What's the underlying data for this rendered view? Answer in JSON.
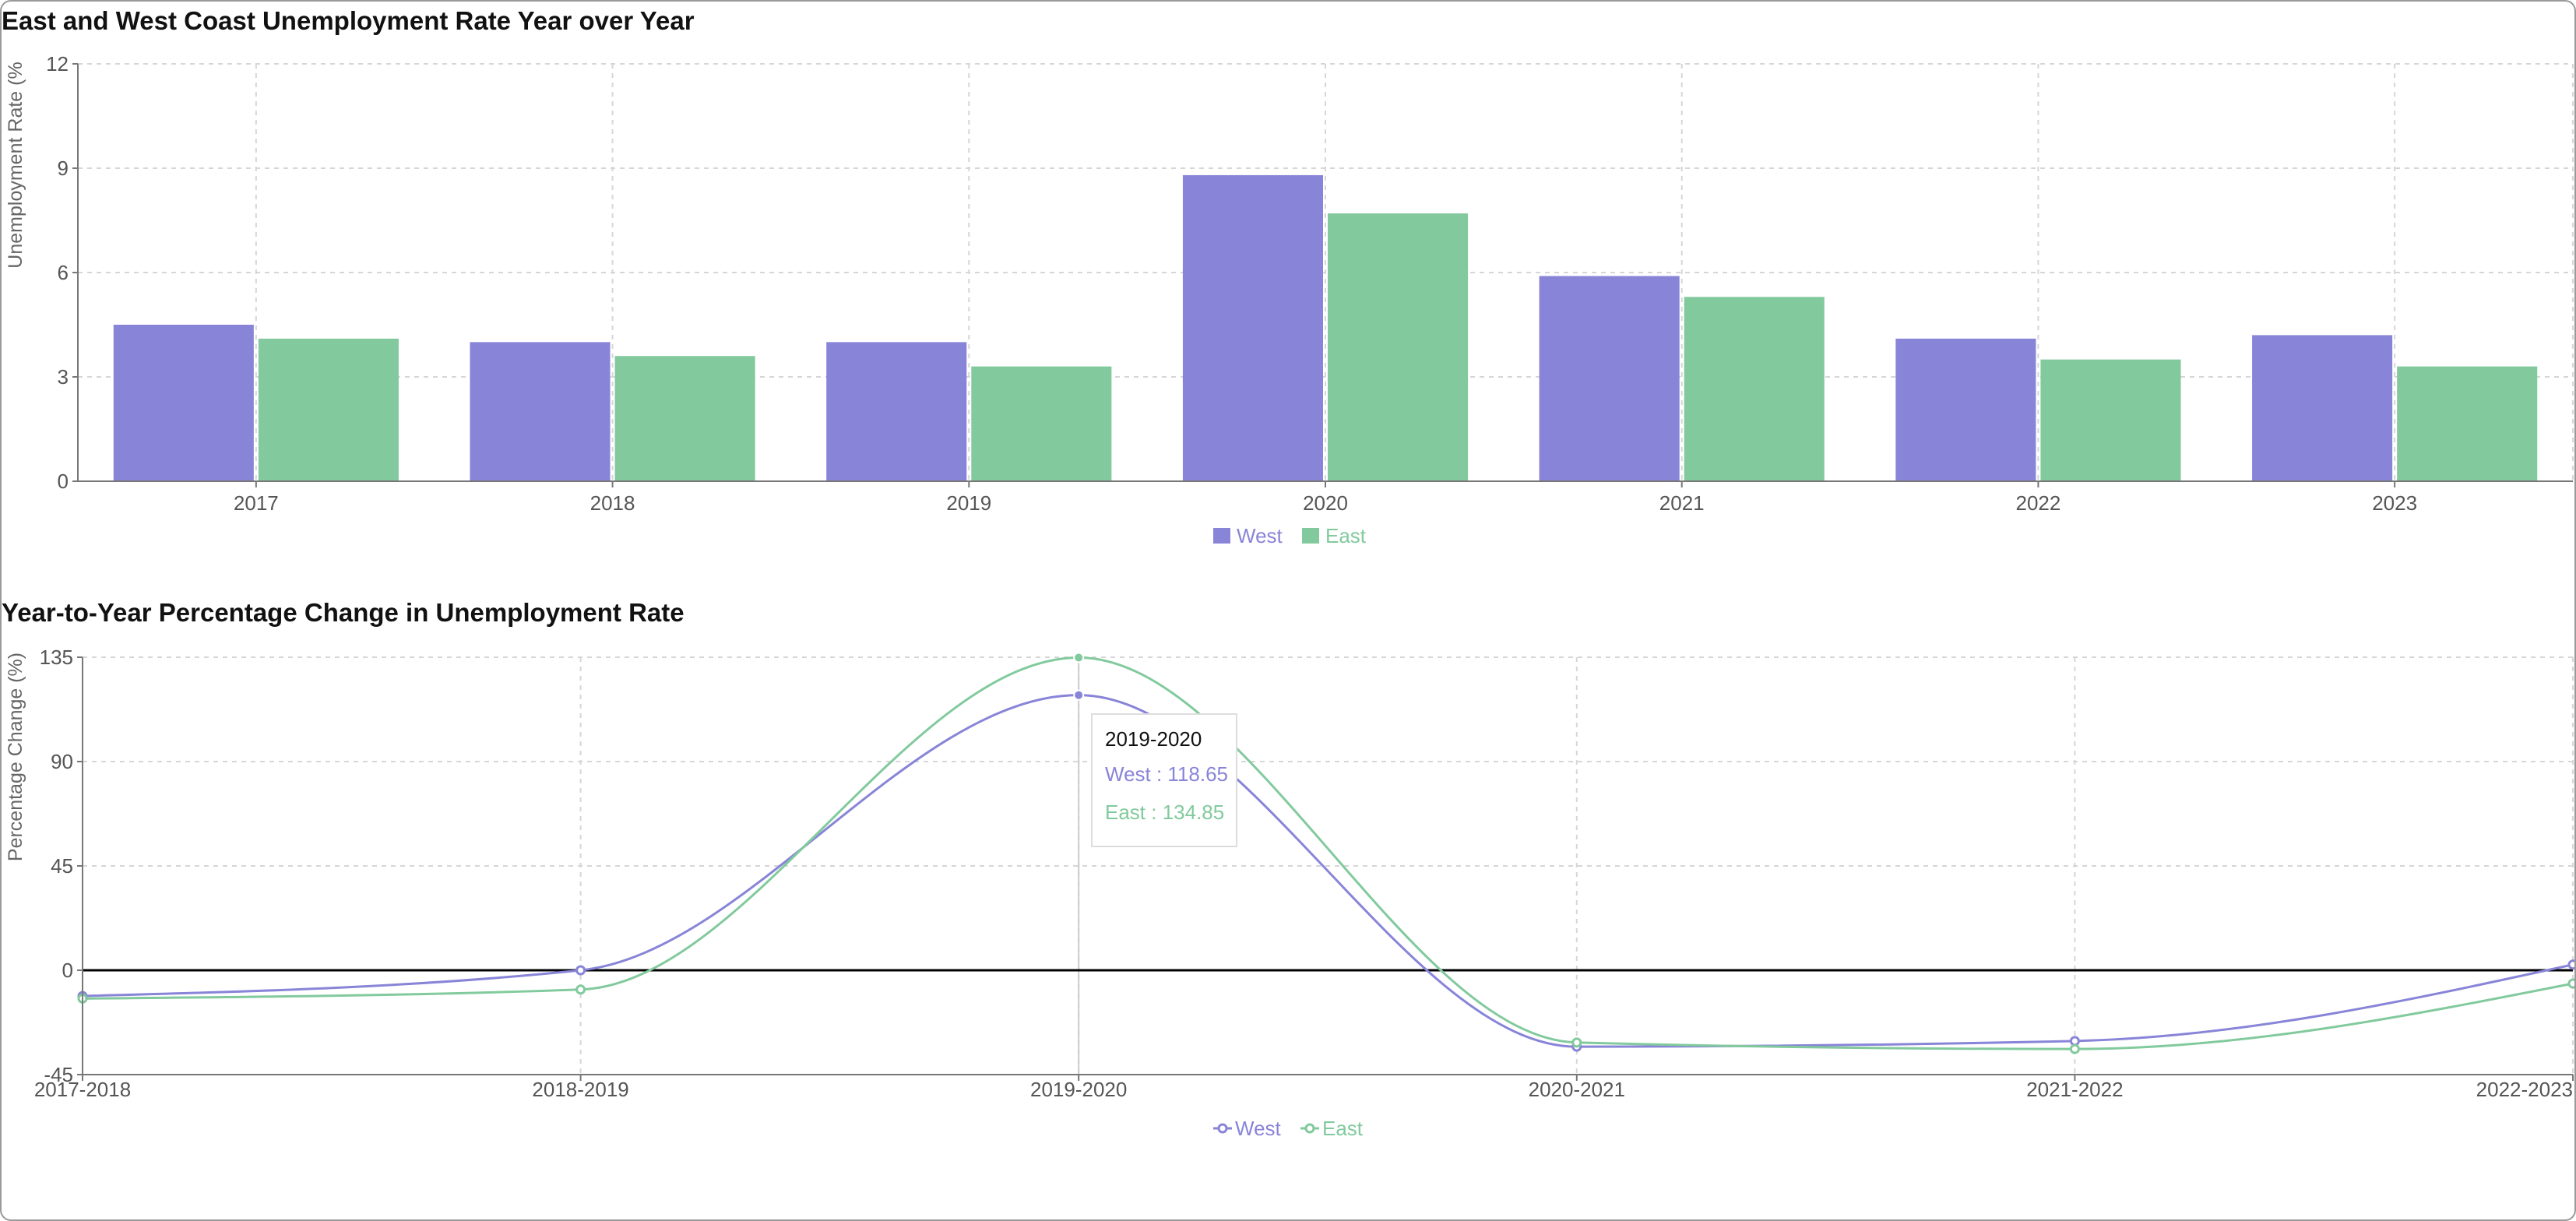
{
  "chart_data": [
    {
      "type": "bar",
      "title": "East and West Coast Unemployment Rate Year over Year",
      "ylabel": "Unemployment Rate (%",
      "xlabel": "",
      "categories": [
        "2017",
        "2018",
        "2019",
        "2020",
        "2021",
        "2022",
        "2023"
      ],
      "series": [
        {
          "name": "West",
          "color": "#8884d8",
          "values": [
            4.5,
            4.0,
            4.0,
            8.8,
            5.9,
            4.1,
            4.2
          ]
        },
        {
          "name": "East",
          "color": "#82ca9d",
          "values": [
            4.1,
            3.6,
            3.3,
            7.7,
            5.3,
            3.5,
            3.3
          ]
        }
      ],
      "ylim": [
        0,
        12
      ],
      "yticks": [
        "0",
        "3",
        "6",
        "9",
        "12"
      ],
      "grid": true,
      "legend": "bottom-center"
    },
    {
      "type": "line",
      "title": "Year-to-Year Percentage Change in Unemployment Rate",
      "ylabel": "Percentage Change (%)",
      "xlabel": "",
      "categories": [
        "2017-2018",
        "2018-2019",
        "2019-2020",
        "2020-2021",
        "2021-2022",
        "2022-2023"
      ],
      "series": [
        {
          "name": "West",
          "color": "#8884d8",
          "values": [
            -11.11,
            0.0,
            118.65,
            -32.95,
            -30.51,
            2.44
          ]
        },
        {
          "name": "East",
          "color": "#82ca9d",
          "values": [
            -12.2,
            -8.33,
            134.85,
            -31.17,
            -33.96,
            -5.71
          ]
        }
      ],
      "ylim": [
        -45,
        135
      ],
      "yticks": [
        "-45",
        "0",
        "45",
        "90",
        "135"
      ],
      "grid": true,
      "reference_line": 0,
      "legend": "bottom-center",
      "tooltip": {
        "label": "2019-2020",
        "west": "West : 118.65",
        "east": "East : 134.85"
      }
    }
  ]
}
